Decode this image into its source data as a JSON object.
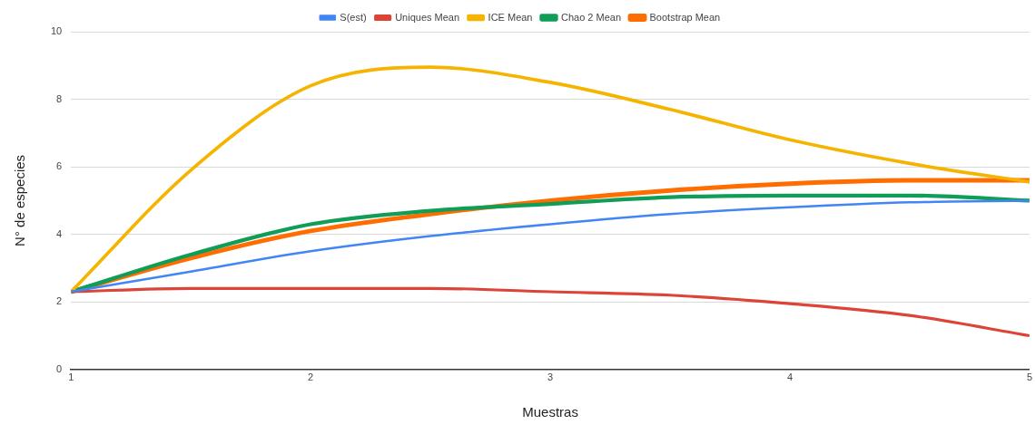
{
  "chart_data": {
    "type": "line",
    "xlabel": "Muestras",
    "ylabel": "N° de especies",
    "x": [
      1,
      1.5,
      2,
      2.5,
      3,
      3.5,
      4,
      4.5,
      5
    ],
    "xlim": [
      1,
      5
    ],
    "xticks": [
      1,
      2,
      3,
      4,
      5
    ],
    "ylim": [
      0,
      10
    ],
    "yticks": [
      0,
      2,
      4,
      6,
      8,
      10
    ],
    "grid": "y",
    "legend": "top",
    "marker": "none",
    "line_style": "solid",
    "series": [
      {
        "name": "S(est)",
        "color": "#4285f4",
        "values": [
          2.3,
          2.9,
          3.5,
          3.95,
          4.3,
          4.6,
          4.8,
          4.95,
          5.0
        ]
      },
      {
        "name": "Uniques Mean",
        "color": "#db4437",
        "values": [
          2.3,
          2.4,
          2.4,
          2.4,
          2.3,
          2.2,
          1.95,
          1.6,
          1.0
        ]
      },
      {
        "name": "ICE Mean",
        "color": "#f4b400",
        "values": [
          2.3,
          5.9,
          8.4,
          8.95,
          8.5,
          7.7,
          6.8,
          6.1,
          5.55
        ]
      },
      {
        "name": "Chao 2 Mean",
        "color": "#0f9d58",
        "values": [
          2.3,
          3.4,
          4.3,
          4.7,
          4.9,
          5.1,
          5.15,
          5.15,
          5.0
        ]
      },
      {
        "name": "Bootstrap Mean",
        "color": "#ff6d01",
        "values": [
          2.3,
          3.3,
          4.1,
          4.6,
          5.0,
          5.3,
          5.5,
          5.6,
          5.6
        ]
      }
    ]
  }
}
